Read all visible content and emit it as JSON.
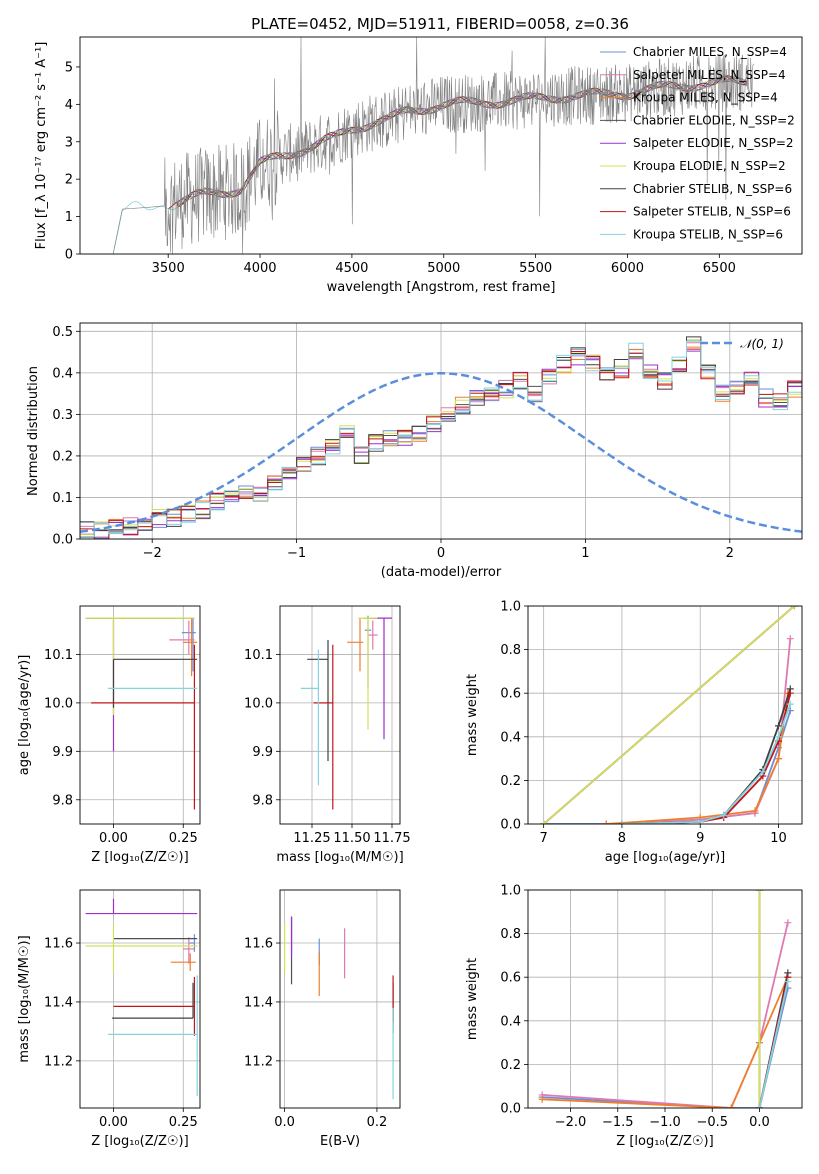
{
  "figure": {
    "title": "PLATE=0452, MJD=51911, FIBERID=0058, z=0.36"
  },
  "chart_data": [
    {
      "id": "spectrum",
      "type": "line",
      "xlabel": "wavelength [Angstrom, rest frame]",
      "ylabel": "Flux [f_λ 10⁻¹⁷ erg cm⁻² s⁻¹ A⁻¹]",
      "xlim": [
        3020,
        6950
      ],
      "ylim": [
        0,
        5.8
      ],
      "xticks": [
        3500,
        4000,
        4500,
        5000,
        5500,
        6000,
        6500
      ],
      "yticks": [
        0,
        1,
        2,
        3,
        4,
        5
      ],
      "grid": false,
      "legend_position": "top-right",
      "data_series": {
        "name": "",
        "color": "#808080"
      },
      "model_series": [
        {
          "name": "Chabrier MILES, N_SSP=4",
          "color": "#6b8fd6"
        },
        {
          "name": "Salpeter MILES, N_SSP=4",
          "color": "#e078b4"
        },
        {
          "name": "Kroupa MILES, N_SSP=4",
          "color": "#ee7f2d"
        },
        {
          "name": "Chabrier ELODIE, N_SSP=2",
          "color": "#505050"
        },
        {
          "name": "Salpeter ELODIE, N_SSP=2",
          "color": "#9b30c9"
        },
        {
          "name": "Kroupa ELODIE, N_SSP=2",
          "color": "#d4e157"
        },
        {
          "name": "Chabrier STELIB, N_SSP=6",
          "color": "#404040"
        },
        {
          "name": "Salpeter STELIB, N_SSP=6",
          "color": "#c0161b"
        },
        {
          "name": "Kroupa STELIB, N_SSP=6",
          "color": "#85d3de"
        }
      ],
      "continuum_knots": {
        "x": [
          3200,
          3250,
          3400,
          3500,
          3600,
          3700,
          3800,
          3900,
          4000,
          4100,
          4200,
          4300,
          4400,
          4500,
          4600,
          4700,
          4800,
          4900,
          5000,
          5200,
          5400,
          5600,
          5800,
          6000,
          6200,
          6400,
          6600,
          6800
        ],
        "y": [
          0.0,
          1.2,
          1.25,
          1.3,
          1.45,
          1.6,
          1.65,
          1.75,
          2.4,
          2.6,
          2.75,
          2.9,
          3.1,
          3.35,
          3.5,
          3.6,
          3.8,
          3.9,
          4.0,
          4.05,
          4.1,
          4.2,
          4.25,
          4.3,
          4.45,
          4.55,
          4.6,
          4.6
        ]
      }
    },
    {
      "id": "residuals",
      "type": "histogram",
      "xlabel": "(data-model)/error",
      "ylabel": "Normed distribution",
      "xlim": [
        -2.5,
        2.5
      ],
      "ylim": [
        0,
        0.52
      ],
      "xticks": [
        -2,
        -1,
        0,
        1,
        2
      ],
      "yticks": [
        0.0,
        0.1,
        0.2,
        0.3,
        0.4,
        0.5
      ],
      "grid": true,
      "legend_position": "top-right",
      "reference_curve": {
        "name": "𝒩(0, 1)",
        "mean": 0,
        "sigma": 1,
        "color": "#5b8fdb"
      },
      "bin_width": 0.1,
      "bin_start": -2.5,
      "base_values": [
        0.02,
        0.02,
        0.03,
        0.03,
        0.04,
        0.05,
        0.05,
        0.06,
        0.07,
        0.09,
        0.1,
        0.12,
        0.11,
        0.14,
        0.16,
        0.18,
        0.2,
        0.22,
        0.25,
        0.2,
        0.23,
        0.24,
        0.24,
        0.25,
        0.28,
        0.3,
        0.32,
        0.34,
        0.35,
        0.36,
        0.38,
        0.35,
        0.39,
        0.42,
        0.44,
        0.42,
        0.4,
        0.41,
        0.45,
        0.4,
        0.38,
        0.42,
        0.47,
        0.4,
        0.35,
        0.36,
        0.38,
        0.34,
        0.33,
        0.36,
        0.35,
        0.33,
        0.34,
        0.32,
        0.31,
        0.28,
        0.3,
        0.27,
        0.26,
        0.25,
        0.24,
        0.22,
        0.21,
        0.18,
        0.17,
        0.15,
        0.14,
        0.13,
        0.12,
        0.1,
        0.09,
        0.08,
        0.08,
        0.07,
        0.06,
        0.06,
        0.05,
        0.04,
        0.04,
        0.04,
        0.05,
        0.04,
        0.03,
        0.04,
        0.05,
        0.04,
        0.03,
        0.03,
        0.04,
        0.04,
        0.03,
        0.03,
        0.04,
        0.04,
        0.03,
        0.04,
        0.03,
        0.04,
        0.04,
        0.04
      ]
    },
    {
      "id": "age-vs-Z",
      "type": "errorbar",
      "xlabel": "Z [log₁₀(Z/Z☉)]",
      "ylabel": "age  [log₁₀(age/yr)]",
      "xlim": [
        -0.12,
        0.31
      ],
      "ylim": [
        9.75,
        10.2
      ],
      "xticks": [
        0.0,
        0.25
      ],
      "yticks": [
        9.8,
        9.9,
        10.0,
        10.1
      ],
      "grid": true,
      "points": [
        {
          "x": 0.285,
          "y": 10.145,
          "xerr": [
            0.04,
            0.01
          ],
          "yerr": [
            0.08,
            0.03
          ],
          "color": "#6b8fd6"
        },
        {
          "x": 0.27,
          "y": 10.13,
          "xerr": [
            0.07,
            0.02
          ],
          "yerr": [
            0.03,
            0.04
          ],
          "color": "#e078b4"
        },
        {
          "x": 0.28,
          "y": 10.125,
          "xerr": [
            0.03,
            0.02
          ],
          "yerr": [
            0.07,
            0.05
          ],
          "color": "#ee7f2d"
        },
        {
          "x": 0.0,
          "y": 10.175,
          "xerr": [
            0.1,
            0.29
          ],
          "yerr": [
            0.0,
            0.0
          ],
          "color": "#505050"
        },
        {
          "x": 0.0,
          "y": 9.92,
          "xerr": [
            0.0,
            0.0
          ],
          "yerr": [
            0.02,
            0.255
          ],
          "color": "#9b30c9"
        },
        {
          "x": 0.0,
          "y": 10.175,
          "xerr": [
            0.1,
            0.29
          ],
          "yerr": [
            0.2,
            0.0
          ],
          "color": "#d4e157"
        },
        {
          "x": 0.0,
          "y": 10.09,
          "xerr": [
            0.0,
            0.3
          ],
          "yerr": [
            0.1,
            0.0
          ],
          "color": "#404040"
        },
        {
          "x": 0.29,
          "y": 10.0,
          "xerr": [
            0.37,
            0.0
          ],
          "yerr": [
            0.22,
            0.12
          ],
          "color": "#c0161b"
        },
        {
          "x": 0.3,
          "y": 10.03,
          "xerr": [
            0.32,
            0.0
          ],
          "yerr": [
            0.0,
            0.0
          ],
          "color": "#85d3de"
        }
      ]
    },
    {
      "id": "age-vs-mass",
      "type": "errorbar",
      "xlabel": "mass [log₁₀(M/M☉)]",
      "ylabel": "",
      "xlim": [
        11.05,
        11.8
      ],
      "ylim": [
        9.75,
        10.2
      ],
      "xticks": [
        11.25,
        11.5,
        11.75
      ],
      "yticks": [
        9.8,
        9.9,
        10.0,
        10.1
      ],
      "grid": true,
      "points": [
        {
          "x": 11.6,
          "y": 10.15,
          "xerr": [
            0.02,
            0.02
          ],
          "yerr": [
            0.12,
            0.03
          ],
          "color": "#6b8fd6"
        },
        {
          "x": 11.63,
          "y": 10.14,
          "xerr": [
            0.03,
            0.03
          ],
          "yerr": [
            0.03,
            0.03
          ],
          "color": "#e078b4"
        },
        {
          "x": 11.55,
          "y": 10.125,
          "xerr": [
            0.08,
            0.02
          ],
          "yerr": [
            0.06,
            0.05
          ],
          "color": "#ee7f2d"
        },
        {
          "x": 11.62,
          "y": 10.175,
          "xerr": [
            0.05,
            0.05
          ],
          "yerr": [
            0.0,
            0.0
          ],
          "color": "#505050"
        },
        {
          "x": 11.7,
          "y": 10.175,
          "xerr": [
            0.08,
            0.05
          ],
          "yerr": [
            0.25,
            0.0
          ],
          "color": "#9b30c9"
        },
        {
          "x": 11.6,
          "y": 10.175,
          "xerr": [
            0.06,
            0.06
          ],
          "yerr": [
            0.23,
            0.0
          ],
          "color": "#d4e157"
        },
        {
          "x": 11.35,
          "y": 10.09,
          "xerr": [
            0.13,
            0.0
          ],
          "yerr": [
            0.21,
            0.04
          ],
          "color": "#404040"
        },
        {
          "x": 11.38,
          "y": 10.0,
          "xerr": [
            0.12,
            0.0
          ],
          "yerr": [
            0.22,
            0.12
          ],
          "color": "#c0161b"
        },
        {
          "x": 11.29,
          "y": 10.03,
          "xerr": [
            0.11,
            0.0
          ],
          "yerr": [
            0.2,
            0.08
          ],
          "color": "#85d3de"
        }
      ]
    },
    {
      "id": "weight-vs-age",
      "type": "line",
      "xlabel": "age  [log₁₀(age/yr)]",
      "ylabel": "mass weight",
      "xlim": [
        6.8,
        10.3
      ],
      "ylim": [
        0,
        1.0
      ],
      "xticks": [
        7,
        8,
        9,
        10
      ],
      "yticks": [
        0.0,
        0.2,
        0.4,
        0.6,
        0.8,
        1.0
      ],
      "grid": true,
      "series": [
        {
          "x": [
            7.0,
            8.0,
            9.0,
            9.7,
            10.0,
            10.15
          ],
          "y": [
            0.0,
            0.0,
            0.02,
            0.05,
            0.35,
            0.52
          ],
          "color": "#6b8fd6"
        },
        {
          "x": [
            7.8,
            9.0,
            9.7,
            10.0,
            10.15
          ],
          "y": [
            0.0,
            0.02,
            0.05,
            0.3,
            0.85
          ],
          "color": "#e078b4"
        },
        {
          "x": [
            7.8,
            9.0,
            9.7,
            10.0,
            10.12
          ],
          "y": [
            0.0,
            0.03,
            0.06,
            0.3,
            0.6
          ],
          "color": "#ee7f2d"
        },
        {
          "x": [
            7.0,
            10.2
          ],
          "y": [
            0.0,
            1.0
          ],
          "color": "#505050"
        },
        {
          "x": [
            7.0,
            10.2
          ],
          "y": [
            0.0,
            1.0
          ],
          "color": "#9b30c9"
        },
        {
          "x": [
            7.0,
            10.2
          ],
          "y": [
            0.0,
            1.0
          ],
          "color": "#d4e157"
        },
        {
          "x": [
            8.0,
            9.0,
            9.3,
            9.8,
            10.0,
            10.15
          ],
          "y": [
            0.0,
            0.01,
            0.04,
            0.25,
            0.45,
            0.62
          ],
          "color": "#404040"
        },
        {
          "x": [
            8.0,
            9.0,
            9.3,
            9.8,
            10.0,
            10.15
          ],
          "y": [
            0.0,
            0.01,
            0.03,
            0.22,
            0.38,
            0.6
          ],
          "color": "#c0161b"
        },
        {
          "x": [
            8.0,
            9.0,
            9.3,
            9.8,
            10.0,
            10.15
          ],
          "y": [
            0.0,
            0.01,
            0.04,
            0.24,
            0.4,
            0.55
          ],
          "color": "#85d3de"
        }
      ]
    },
    {
      "id": "mass-vs-Z",
      "type": "errorbar",
      "xlabel": "Z [log₁₀(Z/Z☉)]",
      "ylabel": "mass [log₁₀(M/M☉)]",
      "xlim": [
        -0.12,
        0.31
      ],
      "ylim": [
        11.04,
        11.78
      ],
      "xticks": [
        0.0,
        0.25
      ],
      "yticks": [
        11.2,
        11.4,
        11.6
      ],
      "grid": true,
      "points": [
        {
          "x": 0.29,
          "y": 11.6,
          "xerr": [
            0.02,
            0.0
          ],
          "yerr": [
            0.03,
            0.03
          ],
          "color": "#6b8fd6"
        },
        {
          "x": 0.27,
          "y": 11.58,
          "xerr": [
            0.02,
            0.02
          ],
          "yerr": [
            0.05,
            0.04
          ],
          "color": "#e078b4"
        },
        {
          "x": 0.275,
          "y": 11.535,
          "xerr": [
            0.07,
            0.02
          ],
          "yerr": [
            0.03,
            0.03
          ],
          "color": "#ee7f2d"
        },
        {
          "x": 0.0,
          "y": 11.615,
          "xerr": [
            0.0,
            0.3
          ],
          "yerr": [
            0.0,
            0.0
          ],
          "color": "#505050"
        },
        {
          "x": 0.0,
          "y": 11.7,
          "xerr": [
            0.1,
            0.3
          ],
          "yerr": [
            0.0,
            0.05
          ],
          "color": "#9b30c9"
        },
        {
          "x": 0.0,
          "y": 11.59,
          "xerr": [
            0.1,
            0.3
          ],
          "yerr": [
            0.09,
            0.07
          ],
          "color": "#d4e157"
        },
        {
          "x": 0.285,
          "y": 11.345,
          "xerr": [
            0.29,
            0.0
          ],
          "yerr": [
            0.0,
            0.12
          ],
          "color": "#404040"
        },
        {
          "x": 0.29,
          "y": 11.385,
          "xerr": [
            0.29,
            0.0
          ],
          "yerr": [
            0.1,
            0.1
          ],
          "color": "#c0161b"
        },
        {
          "x": 0.3,
          "y": 11.29,
          "xerr": [
            0.32,
            0.0
          ],
          "yerr": [
            0.21,
            0.2
          ],
          "color": "#85d3de"
        }
      ]
    },
    {
      "id": "mass-vs-EBV",
      "type": "errorbar",
      "xlabel": "E(B-V)",
      "ylabel": "",
      "xlim": [
        -0.01,
        0.25
      ],
      "ylim": [
        11.04,
        11.78
      ],
      "xticks": [
        0.0,
        0.2
      ],
      "yticks": [
        11.2,
        11.4,
        11.6
      ],
      "grid": true,
      "points": [
        {
          "x": 0.075,
          "y": 11.555,
          "xerr": [
            0.0,
            0.0
          ],
          "yerr": [
            0.03,
            0.06
          ],
          "color": "#6b8fd6"
        },
        {
          "x": 0.13,
          "y": 11.56,
          "xerr": [
            0.0,
            0.0
          ],
          "yerr": [
            0.08,
            0.09
          ],
          "color": "#e078b4"
        },
        {
          "x": 0.075,
          "y": 11.5,
          "xerr": [
            0.0,
            0.0
          ],
          "yerr": [
            0.08,
            0.07
          ],
          "color": "#ee7f2d"
        },
        {
          "x": 0.015,
          "y": 11.57,
          "xerr": [
            0.0,
            0.0
          ],
          "yerr": [
            0.11,
            0.12
          ],
          "color": "#505050"
        },
        {
          "x": 0.015,
          "y": 11.6,
          "xerr": [
            0.0,
            0.0
          ],
          "yerr": [
            0.05,
            0.09
          ],
          "color": "#9b30c9"
        },
        {
          "x": 0.0,
          "y": 11.6,
          "xerr": [
            0.0,
            0.0
          ],
          "yerr": [
            0.1,
            0.07
          ],
          "color": "#d4e157"
        },
        {
          "x": 0.235,
          "y": 11.345,
          "xerr": [
            0.0,
            0.0
          ],
          "yerr": [
            0.05,
            0.12
          ],
          "color": "#404040"
        },
        {
          "x": 0.235,
          "y": 11.39,
          "xerr": [
            0.0,
            0.0
          ],
          "yerr": [
            0.06,
            0.1
          ],
          "color": "#c0161b"
        },
        {
          "x": 0.235,
          "y": 11.23,
          "xerr": [
            0.0,
            0.0
          ],
          "yerr": [
            0.16,
            0.15
          ],
          "color": "#85d3de"
        }
      ]
    },
    {
      "id": "weight-vs-Z",
      "type": "line",
      "xlabel": "Z [log₁₀(Z/Z☉)]",
      "ylabel": "mass weight",
      "xlim": [
        -2.45,
        0.45
      ],
      "ylim": [
        0,
        1.0
      ],
      "xticks": [
        -2.0,
        -1.5,
        -1.0,
        -0.5,
        0.0
      ],
      "yticks": [
        0.0,
        0.2,
        0.4,
        0.6,
        0.8,
        1.0
      ],
      "grid": true,
      "series": [
        {
          "x": [
            -2.3,
            -0.3,
            0.0,
            0.3
          ],
          "y": [
            0.05,
            0.0,
            0.0,
            0.55
          ],
          "color": "#6b8fd6"
        },
        {
          "x": [
            -2.3,
            -0.3,
            0.0,
            0.3
          ],
          "y": [
            0.06,
            0.0,
            0.3,
            0.85
          ],
          "color": "#e078b4"
        },
        {
          "x": [
            -2.3,
            -0.3,
            0.0,
            0.3
          ],
          "y": [
            0.04,
            0.0,
            0.3,
            0.6
          ],
          "color": "#ee7f2d"
        },
        {
          "x": [
            0.0,
            0.0
          ],
          "y": [
            0.0,
            1.0
          ],
          "color": "#505050"
        },
        {
          "x": [
            0.0,
            0.0
          ],
          "y": [
            0.0,
            1.0
          ],
          "color": "#9b30c9"
        },
        {
          "x": [
            0.0,
            0.0
          ],
          "y": [
            0.0,
            1.0
          ],
          "color": "#d4e157"
        },
        {
          "x": [
            0.0,
            0.3
          ],
          "y": [
            0.0,
            0.62
          ],
          "color": "#404040"
        },
        {
          "x": [
            0.0,
            0.3
          ],
          "y": [
            0.0,
            0.6
          ],
          "color": "#c0161b"
        },
        {
          "x": [
            0.0,
            0.3
          ],
          "y": [
            0.0,
            0.58
          ],
          "color": "#85d3de"
        }
      ]
    }
  ]
}
